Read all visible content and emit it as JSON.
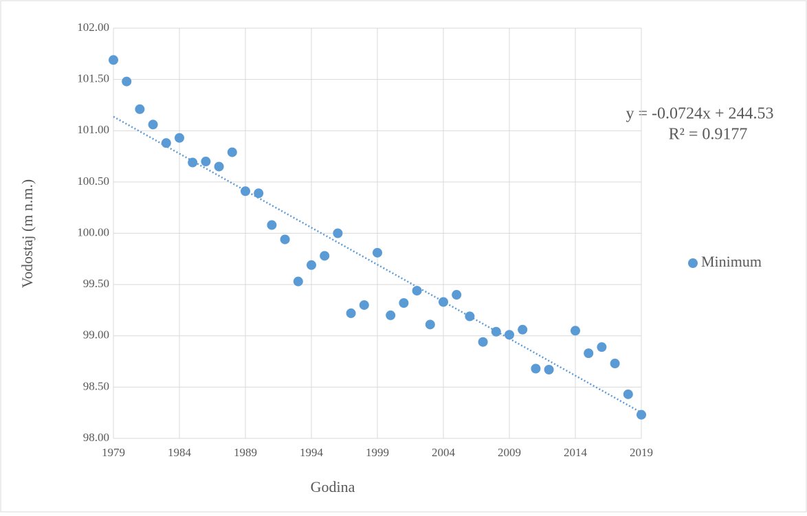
{
  "chart_data": {
    "type": "scatter",
    "x_label": "Godina",
    "y_label": "Vodostaj (m n.m.)",
    "xlim": [
      1979,
      2019
    ],
    "xticks": [
      1979,
      1984,
      1989,
      1994,
      1999,
      2004,
      2009,
      2014,
      2019
    ],
    "ylim": [
      98,
      102
    ],
    "yticks": [
      {
        "value": 98,
        "label": "98.00"
      },
      {
        "value": 98.5,
        "label": "98.50"
      },
      {
        "value": 99,
        "label": "99.00"
      },
      {
        "value": 99.5,
        "label": "99.50"
      },
      {
        "value": 100,
        "label": "100.00"
      },
      {
        "value": 100.5,
        "label": "100.50"
      },
      {
        "value": 101,
        "label": "101.00"
      },
      {
        "value": 101.5,
        "label": "101.50"
      },
      {
        "value": 102,
        "label": "102.00"
      }
    ],
    "grid": true,
    "legend": "right",
    "series": [
      {
        "name": "Minimum",
        "color": "#5b9bd5",
        "x": [
          1979,
          1980,
          1981,
          1982,
          1983,
          1984,
          1985,
          1986,
          1987,
          1988,
          1989,
          1990,
          1991,
          1992,
          1993,
          1994,
          1995,
          1996,
          1997,
          1998,
          1999,
          2000,
          2001,
          2002,
          2003,
          2004,
          2005,
          2006,
          2007,
          2008,
          2009,
          2010,
          2011,
          2012,
          2014,
          2015,
          2016,
          2017,
          2018,
          2019
        ],
        "values": [
          101.69,
          101.48,
          101.21,
          101.06,
          100.88,
          100.93,
          100.69,
          100.7,
          100.65,
          100.79,
          100.41,
          100.39,
          100.08,
          99.94,
          99.53,
          99.69,
          99.78,
          100.0,
          99.22,
          99.3,
          99.81,
          99.2,
          99.32,
          99.44,
          99.11,
          99.33,
          99.4,
          99.19,
          98.94,
          99.04,
          99.01,
          99.06,
          98.68,
          98.67,
          99.05,
          98.83,
          98.89,
          98.73,
          98.43,
          98.23
        ]
      }
    ],
    "trendline": {
      "type": "linear",
      "style": "dotted"
    },
    "annotations": [
      "y = -0.0724x + 244.53",
      "R² = 0.9177"
    ]
  }
}
